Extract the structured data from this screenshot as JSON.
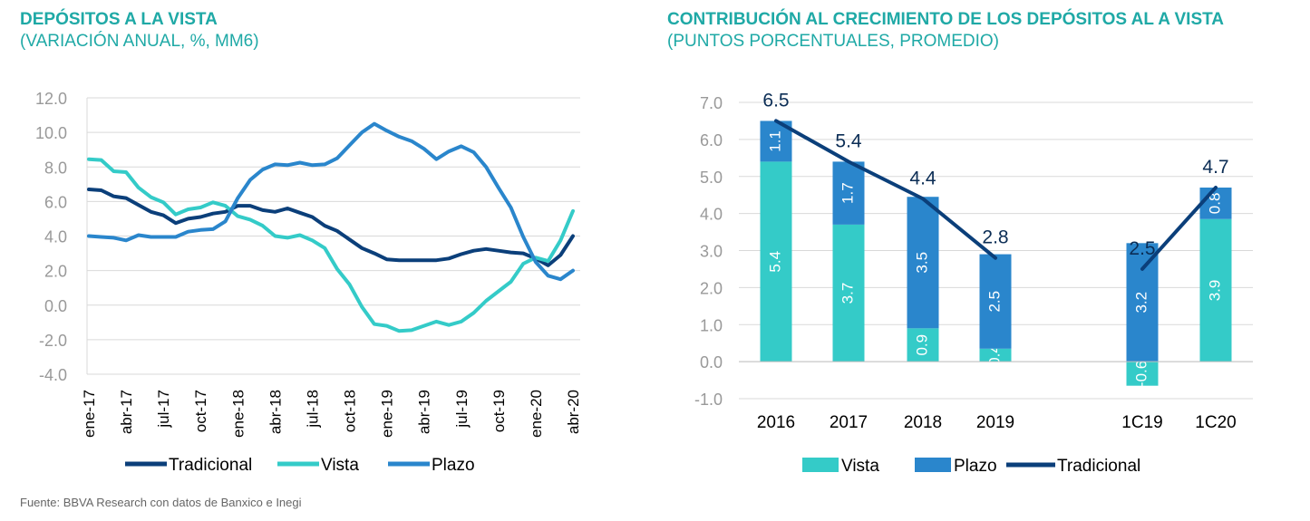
{
  "left": {
    "title": "DEPÓSITOS A LA VISTA",
    "subtitle": "(VARIACIÓN ANUAL, %, MM6)"
  },
  "right": {
    "title": "CONTRIBUCIÓN AL CRECIMIENTO DE LOS DEPÓSITOS AL A VISTA",
    "subtitle": "(PUNTOS PORCENTUALES, PROMEDIO)"
  },
  "source": "Fuente: BBVA Research con datos de Banxico e Inegi",
  "colors": {
    "title": "#1fa9a6",
    "tradicional": "#0b3f7a",
    "vista": "#34cbc8",
    "plazo": "#2a86cc",
    "axis_text": "#999999",
    "grid": "#d9d9d9"
  },
  "chart_data": [
    {
      "type": "line",
      "title": "DEPÓSITOS A LA VISTA",
      "subtitle": "(VARIACIÓN ANUAL, %, MM6)",
      "ylim": [
        -4.0,
        12.0
      ],
      "yticks": [
        "12.0",
        "10.0",
        "8.0",
        "6.0",
        "4.0",
        "2.0",
        "0.0",
        "-2.0",
        "-4.0"
      ],
      "ytick_values": [
        12,
        10,
        8,
        6,
        4,
        2,
        0,
        -2,
        -4
      ],
      "x": [
        "ene-17",
        "feb-17",
        "mar-17",
        "abr-17",
        "may-17",
        "jun-17",
        "jul-17",
        "ago-17",
        "sep-17",
        "oct-17",
        "nov-17",
        "dic-17",
        "ene-18",
        "feb-18",
        "mar-18",
        "abr-18",
        "may-18",
        "jun-18",
        "jul-18",
        "ago-18",
        "sep-18",
        "oct-18",
        "nov-18",
        "dic-18",
        "ene-19",
        "feb-19",
        "mar-19",
        "abr-19",
        "may-19",
        "jun-19",
        "jul-19",
        "ago-19",
        "sep-19",
        "oct-19",
        "nov-19",
        "dic-19",
        "ene-20",
        "feb-20",
        "mar-20",
        "abr-20"
      ],
      "xtick_labels": [
        "ene-17",
        "abr-17",
        "jul-17",
        "oct-17",
        "ene-18",
        "abr-18",
        "jul-18",
        "oct-18",
        "ene-19",
        "abr-19",
        "jul-19",
        "oct-19",
        "ene-20",
        "abr-20"
      ],
      "grid": true,
      "legend": "bottom",
      "series": [
        {
          "name": "Tradicional",
          "color": "#0b3f7a",
          "values": [
            6.7,
            6.65,
            6.3,
            6.2,
            5.8,
            5.4,
            5.2,
            4.75,
            5.0,
            5.1,
            5.3,
            5.4,
            5.75,
            5.75,
            5.5,
            5.4,
            5.6,
            5.35,
            5.1,
            4.6,
            4.3,
            3.8,
            3.3,
            3.0,
            2.65,
            2.6,
            2.6,
            2.6,
            2.6,
            2.7,
            2.95,
            3.15,
            3.25,
            3.15,
            3.05,
            3.0,
            2.7,
            2.3,
            2.9,
            4.0
          ]
        },
        {
          "name": "Vista",
          "color": "#34cbc8",
          "values": [
            8.45,
            8.4,
            7.75,
            7.7,
            6.8,
            6.25,
            5.95,
            5.25,
            5.55,
            5.65,
            5.95,
            5.75,
            5.15,
            4.95,
            4.6,
            4.0,
            3.9,
            4.05,
            3.75,
            3.3,
            2.1,
            1.2,
            -0.1,
            -1.1,
            -1.2,
            -1.5,
            -1.45,
            -1.2,
            -0.95,
            -1.15,
            -0.95,
            -0.45,
            0.25,
            0.8,
            1.35,
            2.4,
            2.75,
            2.55,
            3.75,
            5.45
          ]
        },
        {
          "name": "Plazo",
          "color": "#2a86cc",
          "values": [
            4.0,
            3.95,
            3.9,
            3.75,
            4.05,
            3.95,
            3.95,
            3.95,
            4.25,
            4.35,
            4.4,
            4.85,
            6.2,
            7.25,
            7.85,
            8.15,
            8.1,
            8.25,
            8.1,
            8.15,
            8.5,
            9.25,
            10.0,
            10.5,
            10.1,
            9.75,
            9.5,
            9.05,
            8.45,
            8.9,
            9.2,
            8.85,
            8.0,
            6.8,
            5.65,
            3.95,
            2.5,
            1.7,
            1.5,
            2.0
          ]
        }
      ]
    },
    {
      "type": "bar",
      "title": "CONTRIBUCIÓN AL CRECIMIENTO DE LOS DEPÓSITOS AL A VISTA",
      "subtitle": "(PUNTOS PORCENTUALES, PROMEDIO)",
      "stacked": true,
      "ylim": [
        -1.0,
        7.0
      ],
      "yticks": [
        "7.0",
        "6.0",
        "5.0",
        "4.0",
        "3.0",
        "2.0",
        "1.0",
        "0.0",
        "-1.0"
      ],
      "ytick_values": [
        7,
        6,
        5,
        4,
        3,
        2,
        1,
        0,
        -1
      ],
      "categories": [
        "2016",
        "2017",
        "2018",
        "2019",
        "",
        "1C19",
        "1C20"
      ],
      "grid": true,
      "legend": "bottom",
      "series": [
        {
          "name": "Vista",
          "color": "#34cbc8",
          "values": [
            5.4,
            3.7,
            0.9,
            0.35,
            null,
            -0.65,
            3.85
          ],
          "labels": [
            "5.4",
            "3.7",
            "0.9",
            "0.4",
            "",
            "-0.6",
            "3.9"
          ]
        },
        {
          "name": "Plazo",
          "color": "#2a86cc",
          "values": [
            1.1,
            1.7,
            3.55,
            2.55,
            null,
            3.2,
            0.85
          ],
          "labels": [
            "1.1",
            "1.7",
            "3.5",
            "2.5",
            "",
            "3.2",
            "0.8"
          ]
        },
        {
          "name": "Tradicional",
          "color": "#0b3f7a",
          "kind": "line",
          "values": [
            6.5,
            5.4,
            4.4,
            2.8,
            null,
            2.5,
            4.7
          ],
          "labels": [
            "6.5",
            "5.4",
            "4.4",
            "2.8",
            "",
            "2.5",
            "4.7"
          ]
        }
      ]
    }
  ]
}
